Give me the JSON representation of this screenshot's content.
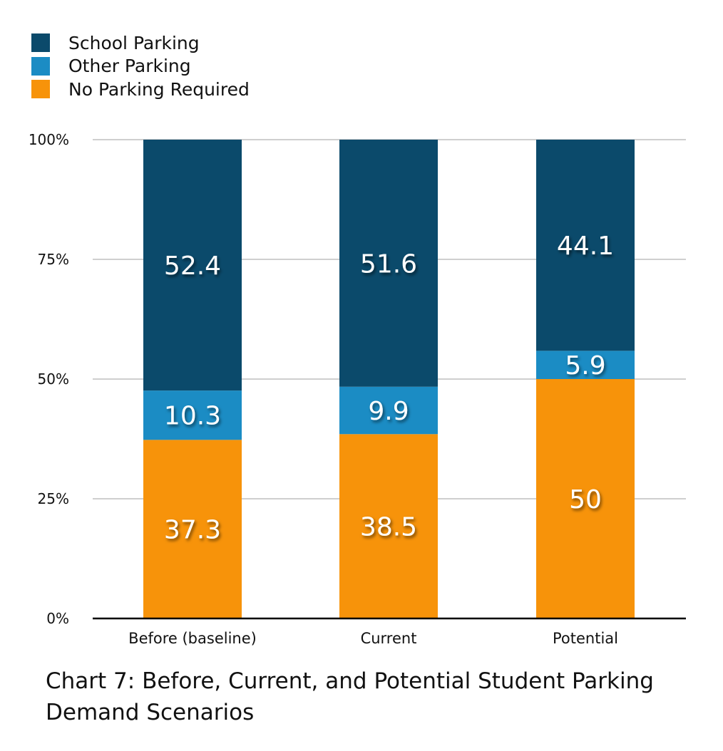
{
  "chart_data": {
    "type": "bar",
    "stacked": true,
    "categories": [
      "Before (baseline)",
      "Current",
      "Potential"
    ],
    "series": [
      {
        "name": "No Parking Required",
        "values": [
          37.3,
          38.5,
          50
        ],
        "color": "#F7930A"
      },
      {
        "name": "Other Parking",
        "values": [
          10.3,
          9.9,
          5.9
        ],
        "color": "#1B8CC4"
      },
      {
        "name": "School Parking",
        "values": [
          52.4,
          51.6,
          44.1
        ],
        "color": "#0B4A6B"
      }
    ],
    "legend_order": [
      "School Parking",
      "Other Parking",
      "No Parking Required"
    ],
    "legend_position": "top-left",
    "ylim": [
      0,
      100
    ],
    "yticks": [
      0,
      25,
      50,
      75,
      100
    ],
    "ytick_labels": [
      "0%",
      "25%",
      "50%",
      "75%",
      "100%"
    ],
    "grid": true,
    "title": "Chart 7: Before, Current, and Potential Student Parking Demand Scenarios"
  }
}
